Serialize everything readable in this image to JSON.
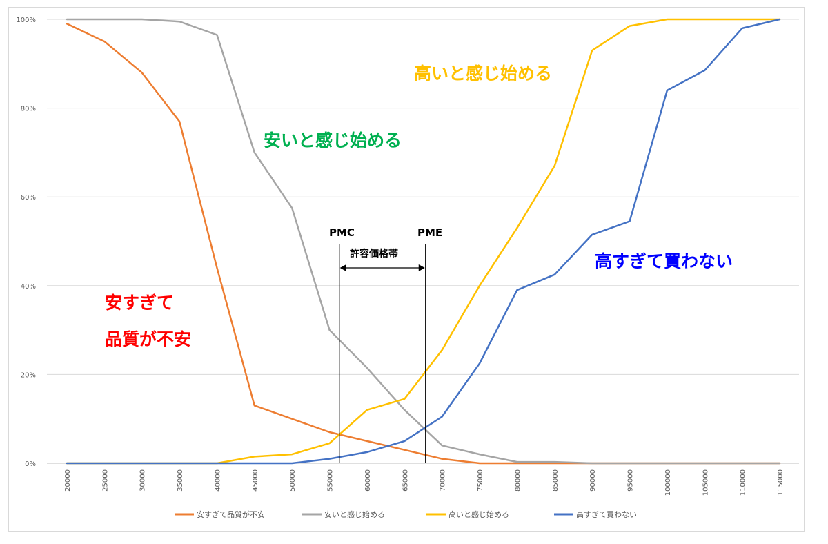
{
  "chart_data": {
    "type": "line",
    "title": "",
    "xlabel": "",
    "ylabel": "",
    "ylim": [
      0,
      100
    ],
    "y_ticks": [
      "0%",
      "20%",
      "40%",
      "60%",
      "80%",
      "100%"
    ],
    "grid": true,
    "legend_position": "bottom",
    "x": [
      "20000",
      "25000",
      "30000",
      "35000",
      "40000",
      "45000",
      "50000",
      "55000",
      "60000",
      "65000",
      "70000",
      "75000",
      "80000",
      "85000",
      "90000",
      "95000",
      "100000",
      "105000",
      "110000",
      "115000"
    ],
    "series": [
      {
        "name": "安すぎて品質が不安",
        "color": "#ED7D31",
        "values": [
          99,
          95,
          88,
          77,
          44,
          13,
          10,
          7,
          5,
          3,
          1,
          0,
          0,
          0,
          0,
          0,
          0,
          0,
          0,
          0
        ]
      },
      {
        "name": "安いと感じ始める",
        "color": "#A5A5A5",
        "values": [
          100,
          100,
          100,
          99.5,
          96.5,
          70,
          57.5,
          30,
          21.5,
          12,
          4,
          2,
          0.3,
          0.3,
          0,
          0,
          0,
          0,
          0,
          0
        ]
      },
      {
        "name": "高いと感じ始める",
        "color": "#FFC000",
        "values": [
          0,
          0,
          0,
          0,
          0,
          1.5,
          2,
          4.5,
          12,
          14.5,
          25.5,
          40,
          53,
          67,
          93,
          98.5,
          100,
          100,
          100,
          100
        ]
      },
      {
        "name": "高すぎて買わない",
        "color": "#4472C4",
        "values": [
          0,
          0,
          0,
          0,
          0,
          0,
          0,
          1,
          2.5,
          5,
          10.5,
          22.5,
          39,
          42.5,
          51.5,
          54.5,
          84,
          88.5,
          98,
          100
        ]
      }
    ],
    "annotations": {
      "too_cheap": [
        "安すぎて",
        "品質が不安"
      ],
      "cheap": "安いと感じ始める",
      "expensive": "高いと感じ始める",
      "too_expensive": "高すぎて買わない",
      "pmc_label": "PMC",
      "pme_label": "PME",
      "range_label": "許容価格帯",
      "pmc_x": 56300,
      "pme_x": 67800
    }
  }
}
